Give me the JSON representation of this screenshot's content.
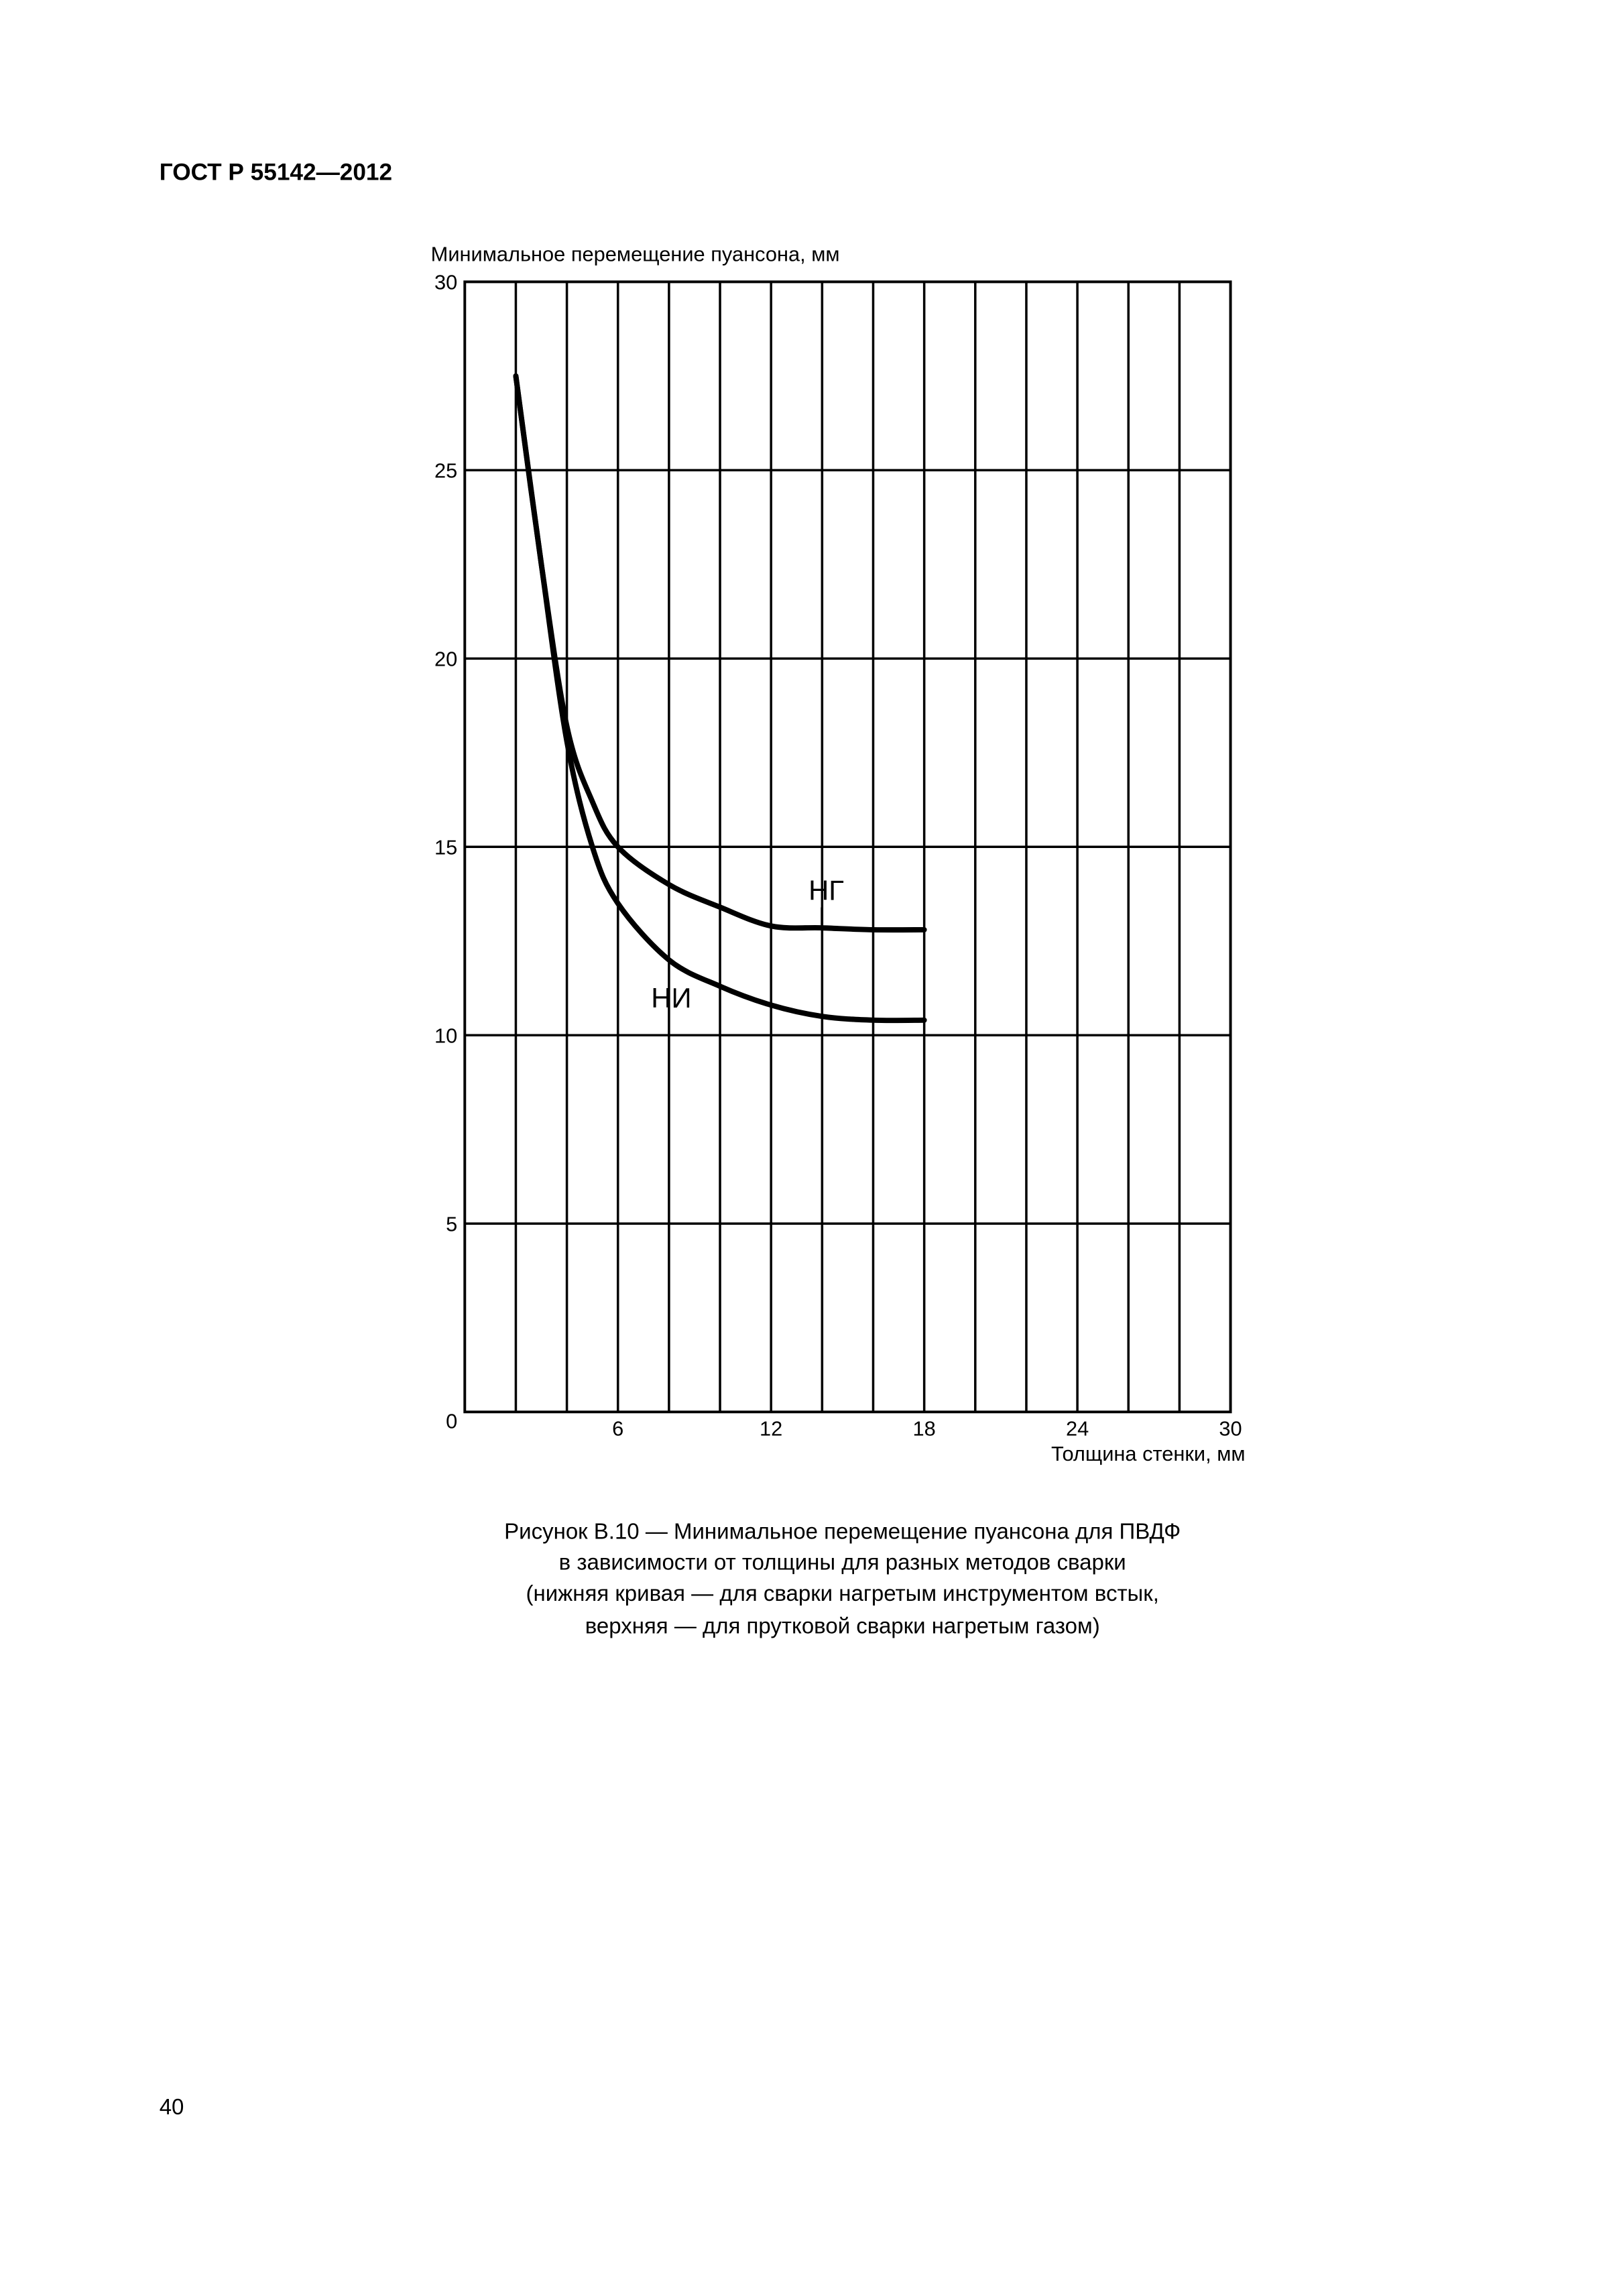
{
  "header": {
    "title": "ГОСТ Р 55142—2012"
  },
  "chart_data": {
    "type": "line",
    "y_label": "Минимальное перемещение пуансона, мм",
    "x_label": "Толщина стенки, мм",
    "x": [
      2,
      3,
      4,
      5,
      6,
      8,
      10,
      12,
      14,
      16,
      18
    ],
    "series": [
      {
        "name": "НГ",
        "color": "#000000",
        "values": [
          27.5,
          22.5,
          18.2,
          16.2,
          15.0,
          14.0,
          13.4,
          12.9,
          12.85,
          12.8,
          12.8
        ]
      },
      {
        "name": "НИ",
        "color": "#000000",
        "values": [
          27.5,
          22.5,
          17.8,
          15.0,
          13.5,
          12.0,
          11.3,
          10.8,
          10.5,
          10.4,
          10.4
        ]
      }
    ],
    "xlim": [
      0,
      30
    ],
    "ylim": [
      0,
      30
    ],
    "xticks": [
      6,
      12,
      18,
      24,
      30
    ],
    "xminorticks": [
      2,
      4,
      8,
      10,
      14,
      16,
      20,
      22,
      26,
      28
    ],
    "yticks": [
      0,
      5,
      10,
      15,
      20,
      25,
      30
    ],
    "grid": true
  },
  "caption": [
    "Рисунок В.10 — Минимальное перемещение пуансона для ПВДФ",
    "в зависимости от толщины для разных методов сварки",
    "(нижняя кривая — для сварки нагретым инструментом встык,",
    "верхняя — для прутковой сварки нагретым газом)"
  ],
  "footer": {
    "page_number": "40"
  }
}
